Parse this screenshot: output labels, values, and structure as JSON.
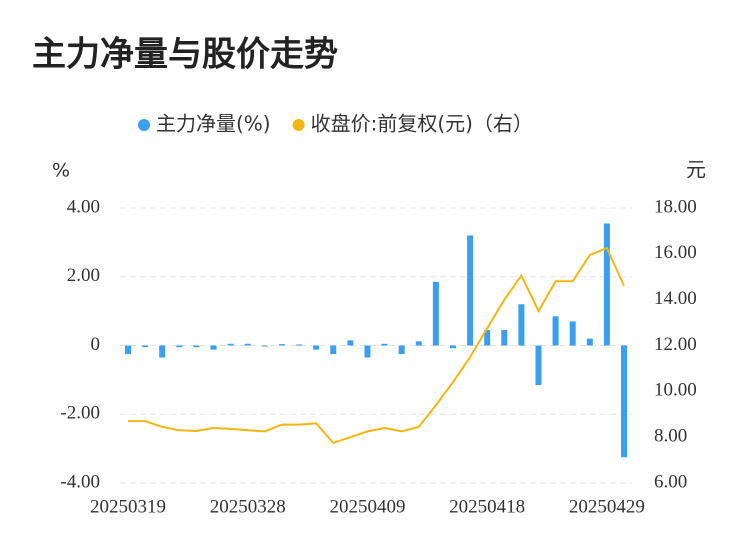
{
  "chart_data": {
    "type": "bar_line",
    "title": "主力净量与股价走势",
    "y_label": "%",
    "y2_label": "元",
    "categories": [
      "20250319",
      null,
      null,
      null,
      null,
      null,
      null,
      "20250328",
      null,
      null,
      null,
      null,
      null,
      null,
      "20250409",
      null,
      null,
      null,
      null,
      null,
      null,
      "20250418",
      null,
      null,
      null,
      null,
      null,
      null,
      "20250429",
      null
    ],
    "series": [
      {
        "name": "主力净量(%)",
        "type": "bar",
        "color": "#3a9ff0",
        "values": [
          -0.25,
          -0.05,
          -0.35,
          -0.05,
          -0.05,
          -0.12,
          0.05,
          0.05,
          -0.03,
          0.04,
          0.03,
          -0.12,
          -0.25,
          0.15,
          -0.35,
          0.05,
          -0.25,
          0.12,
          1.85,
          -0.08,
          3.2,
          0.45,
          0.45,
          1.2,
          -1.15,
          0.85,
          0.7,
          0.2,
          3.55,
          -3.25
        ]
      },
      {
        "name": "收盘价:前复权(元)（右）",
        "type": "line",
        "axis": "y2",
        "color": "#f5b50f",
        "values": [
          8.7,
          8.7,
          8.45,
          8.3,
          8.27,
          8.4,
          8.36,
          8.3,
          8.25,
          8.55,
          8.55,
          8.6,
          7.75,
          8.0,
          8.25,
          8.4,
          8.25,
          8.45,
          9.4,
          10.4,
          11.5,
          12.75,
          14.0,
          15.05,
          13.5,
          14.8,
          14.8,
          15.95,
          16.25,
          14.6
        ]
      }
    ],
    "ylim": [
      -4,
      4
    ],
    "yticks": [
      {
        "value": 4,
        "label": "4.00"
      },
      {
        "value": 2,
        "label": "2.00"
      },
      0,
      {
        "value": -2,
        "label": "-2.00"
      },
      {
        "value": -4,
        "label": "-4.00"
      }
    ],
    "y2lim": [
      6,
      18
    ],
    "y2ticks": [
      {
        "value": 18,
        "label": "18.00"
      },
      {
        "value": 16,
        "label": "16.00"
      },
      {
        "value": 14,
        "label": "14.00"
      },
      {
        "value": 12,
        "label": "12.00"
      },
      {
        "value": 10,
        "label": "10.00"
      },
      {
        "value": 8,
        "label": "8.00"
      },
      {
        "value": 6,
        "label": "6.00"
      }
    ],
    "grid": true,
    "legend": "top"
  }
}
